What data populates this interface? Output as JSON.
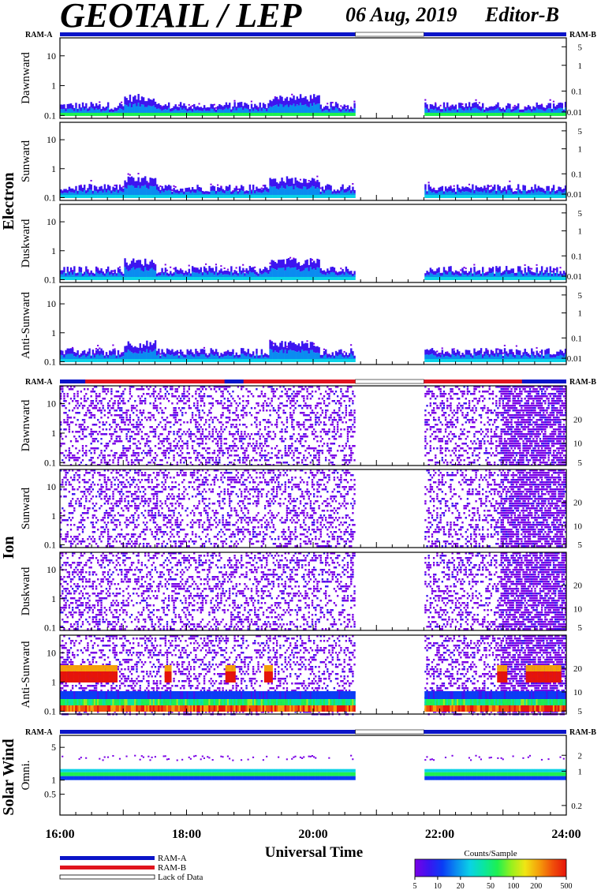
{
  "header": {
    "instrument": "GEOTAIL / LEP",
    "date": "06 Aug, 2019",
    "editor": "Editor-B"
  },
  "ram_labels": {
    "left": "RAM-A",
    "right": "RAM-B"
  },
  "groups": [
    {
      "name": "Electron",
      "panels": [
        "Dawnward",
        "Sunward",
        "Duskward",
        "Anti-Sunward"
      ]
    },
    {
      "name": "Ion",
      "panels": [
        "Dawnward",
        "Sunward",
        "Duskward",
        "Anti-Sunward"
      ]
    },
    {
      "name": "Solar Wind",
      "panels": [
        "Omni."
      ]
    }
  ],
  "axes": {
    "y_left_ticks": [
      "10",
      "1",
      "0.1"
    ],
    "y_left_ticks_sw": [
      "5",
      "1",
      "0.5"
    ],
    "y_right_electron": [
      "5",
      "1",
      "0.1",
      "0.01"
    ],
    "y_right_ion": [
      "20",
      "10",
      "5"
    ],
    "y_right_sw": [
      "2",
      "1",
      "0.2"
    ],
    "x_ticks": [
      "16:00",
      "18:00",
      "20:00",
      "22:00",
      "24:00"
    ],
    "xlabel": "Universal Time"
  },
  "legend": {
    "ram_a": "RAM-A",
    "ram_b": "RAM-B",
    "lack": "Lack of Data",
    "colorbar_title": "Counts/Sample",
    "colorbar_ticks": [
      "5",
      "10",
      "20",
      "50",
      "100",
      "200",
      "500"
    ],
    "colors": {
      "ram_a": "#0a14c8",
      "ram_b": "#e0141e"
    }
  },
  "chart_data": {
    "type": "heatmap",
    "x_range": [
      "16:00",
      "24:00"
    ],
    "data_gap": [
      "20:40",
      "21:45"
    ],
    "y_scale": "log",
    "y_range": [
      0.08,
      40
    ],
    "color_scale": {
      "title": "Counts/Sample",
      "min": 5,
      "max": 500,
      "scale": "log"
    },
    "panels": [
      {
        "group": "Electron",
        "name": "Dawnward",
        "ram": "RAM-A"
      },
      {
        "group": "Electron",
        "name": "Sunward",
        "ram": "RAM-A"
      },
      {
        "group": "Electron",
        "name": "Duskward",
        "ram": "RAM-A"
      },
      {
        "group": "Electron",
        "name": "Anti-Sunward",
        "ram": "RAM-A"
      },
      {
        "group": "Ion",
        "name": "Dawnward",
        "ram": "RAM-A/RAM-B"
      },
      {
        "group": "Ion",
        "name": "Sunward",
        "ram": "RAM-A/RAM-B"
      },
      {
        "group": "Ion",
        "name": "Duskward",
        "ram": "RAM-A/RAM-B"
      },
      {
        "group": "Ion",
        "name": "Anti-Sunward",
        "ram": "RAM-A/RAM-B"
      },
      {
        "group": "Solar Wind",
        "name": "Omni.",
        "ram": "RAM-A"
      }
    ]
  }
}
